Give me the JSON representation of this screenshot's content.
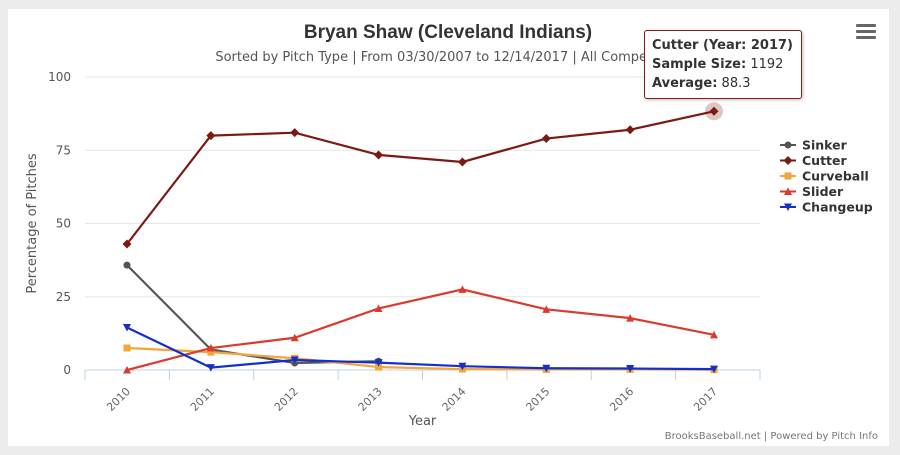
{
  "chart_data": {
    "type": "line",
    "title": "Bryan Shaw (Cleveland Indians)",
    "subtitle": "Sorted by Pitch Type | From 03/30/2007 to 12/14/2017 | All Competition",
    "xlabel": "Year",
    "ylabel": "Percentage of Pitches",
    "x": [
      "2010",
      "2011",
      "2012",
      "2013",
      "2014",
      "2015",
      "2016",
      "2017"
    ],
    "yticks": [
      0,
      25,
      50,
      75,
      100
    ],
    "ylim": [
      0,
      100
    ],
    "grid": true,
    "legend_placement": "right",
    "series": [
      {
        "name": "Sinker",
        "color": "#555555",
        "marker": "circle",
        "values": [
          35.8,
          7,
          2.4,
          3,
          null,
          null,
          null,
          null
        ]
      },
      {
        "name": "Cutter",
        "color": "#7b1a12",
        "marker": "diamond",
        "values": [
          43,
          80,
          81,
          73.4,
          71,
          79,
          82,
          88.3
        ]
      },
      {
        "name": "Curveball",
        "color": "#f0a63c",
        "marker": "square",
        "values": [
          7.5,
          6.1,
          4,
          1,
          0.3,
          0.2,
          0.2,
          0.1
        ]
      },
      {
        "name": "Slider",
        "color": "#d93b2e",
        "marker": "triangle",
        "values": [
          0,
          7.5,
          11,
          21,
          27.5,
          20.7,
          17.7,
          12
        ]
      },
      {
        "name": "Changeup",
        "color": "#1430c8",
        "marker": "triangle-down",
        "values": [
          14.5,
          0.8,
          3.4,
          2.5,
          1.3,
          0.6,
          0.5,
          0.3
        ]
      }
    ],
    "tooltip": {
      "series": "Cutter",
      "title": "Cutter (Year: 2017)",
      "sample_label": "Sample Size:",
      "sample_value": "1192",
      "avg_label": "Average:",
      "avg_value": "88.3"
    },
    "credits": "BrooksBaseball.net | Powered by Pitch Info"
  }
}
